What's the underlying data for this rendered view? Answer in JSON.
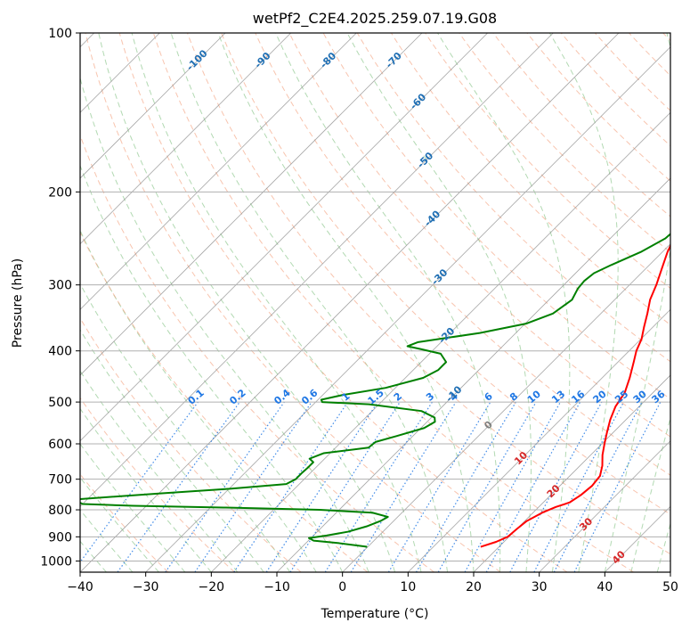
{
  "chart_data": {
    "type": "line",
    "title": "wetPf2_C2E4.2025.259.07.19.G08",
    "xlabel": "Temperature (°C)",
    "ylabel": "Pressure (hPa)",
    "xlim": [
      -40,
      50
    ],
    "ylim": [
      1050,
      100
    ],
    "x_ticks": [
      -40,
      -30,
      -20,
      -10,
      0,
      10,
      20,
      30,
      40,
      50
    ],
    "x_tick_labels": [
      "−40",
      "−30",
      "−20",
      "−10",
      "0",
      "10",
      "20",
      "30",
      "40",
      "50"
    ],
    "y_ticks": [
      1000,
      900,
      800,
      700,
      600,
      500,
      400,
      300,
      200,
      100
    ],
    "y_tick_labels": [
      "1000",
      "900",
      "800",
      "700",
      "600",
      "500",
      "400",
      "300",
      "200",
      "100"
    ],
    "grid": true,
    "colors": {
      "temperature": "#ff0000",
      "dewpoint": "#008000",
      "dry_adiabat": "#f4a582",
      "moist_adiabat": "#7fbf7f",
      "mixing_ratio": "#1f77e4",
      "isotherm": "#888888",
      "isotherm_label_cold": "#1f6fb4",
      "isotherm_label_zero": "#808080",
      "isotherm_label_warm": "#d62728"
    },
    "isotherm_labels": [
      {
        "t": -100,
        "text": "-100"
      },
      {
        "t": -90,
        "text": "-90"
      },
      {
        "t": -80,
        "text": "-80"
      },
      {
        "t": -70,
        "text": "-70"
      },
      {
        "t": -60,
        "text": "-60"
      },
      {
        "t": -50,
        "text": "-50"
      },
      {
        "t": -40,
        "text": "-40"
      },
      {
        "t": -30,
        "text": "-30"
      },
      {
        "t": -20,
        "text": "-20"
      },
      {
        "t": -10,
        "text": "-10"
      },
      {
        "t": 0,
        "text": "0"
      },
      {
        "t": 10,
        "text": "10"
      },
      {
        "t": 20,
        "text": "20"
      },
      {
        "t": 30,
        "text": "30"
      },
      {
        "t": 40,
        "text": "40"
      }
    ],
    "mixing_ratio_labels": [
      "0.1",
      "0.2",
      "0.4",
      "0.6",
      "1",
      "1.5",
      "2",
      "3",
      "4",
      "6",
      "8",
      "10",
      "13",
      "16",
      "20",
      "25",
      "30",
      "36"
    ],
    "series": [
      {
        "name": "temperature",
        "points": [
          [
            940,
            17.2
          ],
          [
            920,
            18.8
          ],
          [
            900,
            19.8
          ],
          [
            870,
            20.0
          ],
          [
            840,
            20.3
          ],
          [
            810,
            21.4
          ],
          [
            790,
            22.6
          ],
          [
            775,
            24.0
          ],
          [
            750,
            24.6
          ],
          [
            720,
            24.9
          ],
          [
            690,
            24.6
          ],
          [
            660,
            23.4
          ],
          [
            630,
            21.8
          ],
          [
            600,
            20.4
          ],
          [
            570,
            19.0
          ],
          [
            540,
            17.6
          ],
          [
            510,
            16.4
          ],
          [
            480,
            15.7
          ],
          [
            450,
            14.2
          ],
          [
            420,
            12.4
          ],
          [
            400,
            11.1
          ],
          [
            380,
            10.1
          ],
          [
            360,
            8.6
          ],
          [
            340,
            7.1
          ],
          [
            320,
            5.4
          ],
          [
            300,
            4.1
          ],
          [
            280,
            2.5
          ],
          [
            260,
            0.8
          ],
          [
            245,
            -0.3
          ],
          [
            230,
            -0.9
          ],
          [
            215,
            -1.3
          ],
          [
            200,
            -1.4
          ],
          [
            185,
            -0.3
          ],
          [
            170,
            1.3
          ],
          [
            155,
            3.1
          ],
          [
            145,
            5.6
          ],
          [
            135,
            7.3
          ],
          [
            125,
            7.9
          ],
          [
            115,
            8.2
          ],
          [
            107,
            10.6
          ],
          [
            100,
            13.2
          ]
        ]
      },
      {
        "name": "dewpoint",
        "points": [
          [
            940,
            -0.1
          ],
          [
            925,
            -5.0
          ],
          [
            915,
            -9.2
          ],
          [
            905,
            -10.3
          ],
          [
            895,
            -8.0
          ],
          [
            880,
            -5.3
          ],
          [
            860,
            -3.3
          ],
          [
            840,
            -2.0
          ],
          [
            825,
            -1.5
          ],
          [
            810,
            -4.5
          ],
          [
            800,
            -13.0
          ],
          [
            792,
            -28.0
          ],
          [
            786,
            -42.0
          ],
          [
            780,
            -50.0
          ],
          [
            765,
            -52.0
          ],
          [
            745,
            -40.0
          ],
          [
            730,
            -30.0
          ],
          [
            715,
            -22.0
          ],
          [
            700,
            -21.3
          ],
          [
            680,
            -21.3
          ],
          [
            665,
            -21.2
          ],
          [
            650,
            -21.2
          ],
          [
            640,
            -22.3
          ],
          [
            625,
            -21.0
          ],
          [
            610,
            -15.0
          ],
          [
            595,
            -14.8
          ],
          [
            580,
            -12.5
          ],
          [
            560,
            -9.5
          ],
          [
            545,
            -8.8
          ],
          [
            535,
            -9.5
          ],
          [
            520,
            -12.5
          ],
          [
            505,
            -21.5
          ],
          [
            500,
            -29.0
          ],
          [
            495,
            -29.5
          ],
          [
            485,
            -27.0
          ],
          [
            470,
            -21.5
          ],
          [
            450,
            -17.3
          ],
          [
            435,
            -16.2
          ],
          [
            420,
            -16.2
          ],
          [
            405,
            -18.3
          ],
          [
            397,
            -22.0
          ],
          [
            392,
            -24.5
          ],
          [
            385,
            -23.5
          ],
          [
            370,
            -15.5
          ],
          [
            355,
            -9.8
          ],
          [
            340,
            -7.3
          ],
          [
            320,
            -6.5
          ],
          [
            305,
            -7.3
          ],
          [
            295,
            -7.5
          ],
          [
            285,
            -7.2
          ],
          [
            275,
            -5.8
          ],
          [
            260,
            -3.3
          ],
          [
            245,
            -1.6
          ],
          [
            230,
            -1.3
          ],
          [
            220,
            -2.3
          ],
          [
            208,
            -3.8
          ],
          [
            200,
            -4.3
          ],
          [
            193,
            -6.3
          ],
          [
            186,
            -10.3
          ],
          [
            178,
            -10.7
          ],
          [
            170,
            -9.5
          ],
          [
            160,
            -7.3
          ],
          [
            150,
            -6.2
          ],
          [
            140,
            -5.3
          ],
          [
            130,
            -3.9
          ],
          [
            120,
            -2.7
          ],
          [
            110,
            -0.2
          ],
          [
            100,
            1.9
          ]
        ]
      }
    ]
  }
}
